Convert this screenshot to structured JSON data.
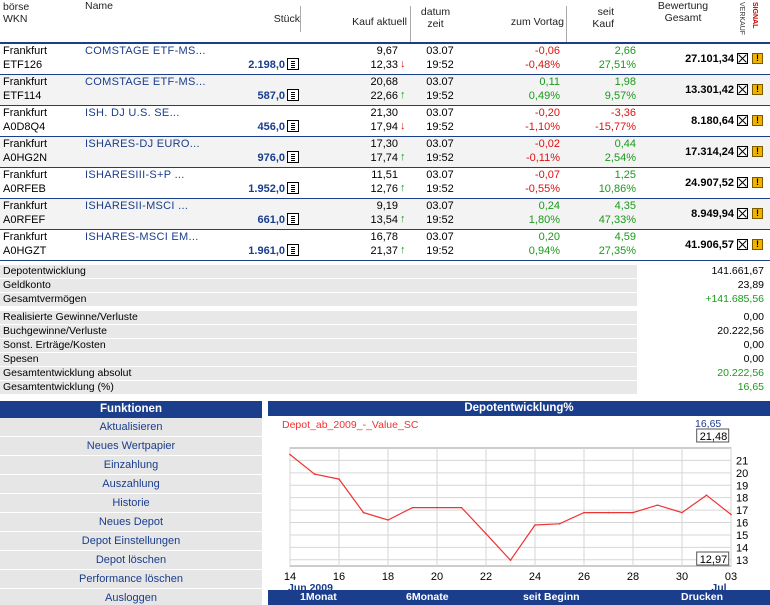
{
  "header": {
    "exchange": "börse",
    "wkn": "WKN",
    "name": "Name",
    "qty": "Stück",
    "kauf": "Kauf aktuell",
    "datum": "datum",
    "zeit": "zeit",
    "vortag": "zum Vortag",
    "seit": "seit",
    "kauf2": "Kauf",
    "bewertung": "Bewertung",
    "gesamt": "Gesamt",
    "verkauf": "VERKAUF",
    "signal": "SIGNAL"
  },
  "positions": [
    {
      "exchange": "Frankfurt",
      "wkn": "ETF126",
      "name": "COMSTAGE ETF-MS...",
      "qty": "2.198,0",
      "kauf": "9,67",
      "kauf2": "12,33",
      "trend": "down",
      "date": "03.07",
      "time": "19:52",
      "zv_abs": "-0,06",
      "zv_pct": "-0,48%",
      "sk_abs": "2,66",
      "sk_pct": "27,51%",
      "bewertung": "27.101,34",
      "zv_color": "neg",
      "sk_color": "pos"
    },
    {
      "exchange": "Frankfurt",
      "wkn": "ETF114",
      "name": "COMSTAGE ETF-MS...",
      "qty": "587,0",
      "kauf": "20,68",
      "kauf2": "22,66",
      "trend": "up",
      "date": "03.07",
      "time": "19:52",
      "zv_abs": "0,11",
      "zv_pct": "0,49%",
      "sk_abs": "1,98",
      "sk_pct": "9,57%",
      "bewertung": "13.301,42",
      "zv_color": "pos",
      "sk_color": "pos"
    },
    {
      "exchange": "Frankfurt",
      "wkn": "A0D8Q4",
      "name": "ISH. DJ U.S. SE...",
      "qty": "456,0",
      "kauf": "21,30",
      "kauf2": "17,94",
      "trend": "down",
      "date": "03.07",
      "time": "19:52",
      "zv_abs": "-0,20",
      "zv_pct": "-1,10%",
      "sk_abs": "-3,36",
      "sk_pct": "-15,77%",
      "bewertung": "8.180,64",
      "zv_color": "neg",
      "sk_color": "neg"
    },
    {
      "exchange": "Frankfurt",
      "wkn": "A0HG2N",
      "name": "ISHARES-DJ EURO...",
      "qty": "976,0",
      "kauf": "17,30",
      "kauf2": "17,74",
      "trend": "up",
      "date": "03.07",
      "time": "19:52",
      "zv_abs": "-0,02",
      "zv_pct": "-0,11%",
      "sk_abs": "0,44",
      "sk_pct": "2,54%",
      "bewertung": "17.314,24",
      "zv_color": "neg",
      "sk_color": "pos"
    },
    {
      "exchange": "Frankfurt",
      "wkn": "A0RFEB",
      "name": "ISHARESIII-S+P ...",
      "qty": "1.952,0",
      "kauf": "11,51",
      "kauf2": "12,76",
      "trend": "up",
      "date": "03.07",
      "time": "19:52",
      "zv_abs": "-0,07",
      "zv_pct": "-0,55%",
      "sk_abs": "1,25",
      "sk_pct": "10,86%",
      "bewertung": "24.907,52",
      "zv_color": "neg",
      "sk_color": "pos"
    },
    {
      "exchange": "Frankfurt",
      "wkn": "A0RFEF",
      "name": "ISHARESII-MSCI ...",
      "qty": "661,0",
      "kauf": "9,19",
      "kauf2": "13,54",
      "trend": "up",
      "date": "03.07",
      "time": "19:52",
      "zv_abs": "0,24",
      "zv_pct": "1,80%",
      "sk_abs": "4,35",
      "sk_pct": "47,33%",
      "bewertung": "8.949,94",
      "zv_color": "pos",
      "sk_color": "pos"
    },
    {
      "exchange": "Frankfurt",
      "wkn": "A0HGZT",
      "name": "ISHARES-MSCI EM...",
      "qty": "1.961,0",
      "kauf": "16,78",
      "kauf2": "21,37",
      "trend": "up",
      "date": "03.07",
      "time": "19:52",
      "zv_abs": "0,20",
      "zv_pct": "0,94%",
      "sk_abs": "4,59",
      "sk_pct": "27,35%",
      "bewertung": "41.906,57",
      "zv_color": "pos",
      "sk_color": "pos"
    }
  ],
  "summary": [
    {
      "label": "Depotentwicklung",
      "value": "141.661,67",
      "color": "normal"
    },
    {
      "label": "Geldkonto",
      "value": "23,89",
      "color": "normal"
    },
    {
      "label": "Gesamtvermögen",
      "value": "+141.685,56",
      "color": "pos"
    },
    {
      "label": "Realisierte Gewinne/Verluste",
      "value": "0,00",
      "color": "normal"
    },
    {
      "label": "Buchgewinne/Verluste",
      "value": "20.222,56",
      "color": "normal"
    },
    {
      "label": "Sonst. Erträge/Kosten",
      "value": "0,00",
      "color": "normal"
    },
    {
      "label": "Spesen",
      "value": "0,00",
      "color": "normal"
    },
    {
      "label": "Gesamtentwicklung absolut",
      "value": "20.222,56",
      "color": "pos"
    },
    {
      "label": "Gesamtentwicklung (%)",
      "value": "16,65",
      "color": "pos"
    }
  ],
  "functions": {
    "title": "Funktionen",
    "items": [
      "Aktualisieren",
      "Neues Wertpapier",
      "Einzahlung",
      "Auszahlung",
      "Historie",
      "Neues Depot",
      "Depot Einstellungen",
      "Depot löschen",
      "Performance löschen",
      "Ausloggen"
    ]
  },
  "chart_panel": {
    "title": "Depotentwicklung%",
    "current_value": "16,65",
    "max_label": "21,48",
    "min_label": "12,97",
    "footer": [
      "1Monat",
      "6Monate",
      "seit Beginn",
      "Drucken"
    ]
  },
  "chart_data": {
    "type": "line",
    "title": "Depotentwicklung%",
    "series": [
      {
        "name": "Depot_ab_2009_-_Value_SC",
        "x": [
          14,
          15,
          16,
          17,
          18,
          19,
          20,
          21,
          22,
          23,
          24,
          25,
          26,
          27,
          28,
          29,
          30,
          31,
          32
        ],
        "values": [
          21.48,
          19.9,
          19.5,
          16.8,
          16.2,
          17.2,
          17.2,
          17.2,
          15.1,
          12.97,
          15.8,
          15.9,
          16.8,
          16.8,
          16.8,
          17.4,
          16.8,
          18.2,
          16.65
        ]
      }
    ],
    "x_tick_labels": [
      "14",
      "16",
      "18",
      "20",
      "22",
      "24",
      "26",
      "28",
      "30",
      "03"
    ],
    "x_month_labels": [
      "Jun 2009",
      "Jul"
    ],
    "y_ticks": [
      13,
      14,
      15,
      16,
      17,
      18,
      19,
      20,
      21
    ],
    "ylim": [
      12.5,
      22
    ],
    "grid": true,
    "line_color": "#ee3333"
  }
}
